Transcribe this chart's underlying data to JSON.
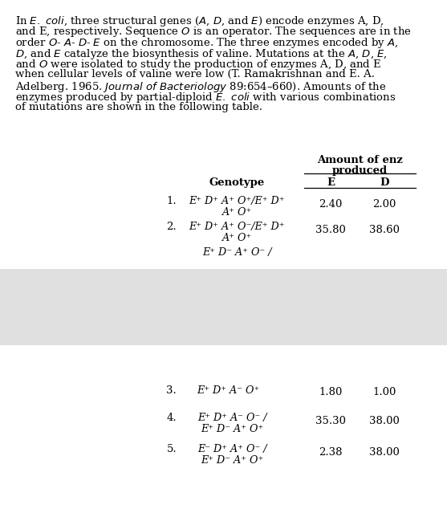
{
  "col_header_line1": "Amount of enz",
  "col_header_line2": "produced",
  "col_genotype": "Genotype",
  "col_E": "E",
  "col_D": "D",
  "rows": [
    {
      "num": "1.",
      "genotype_lines": [
        "E⁺ D⁺ A⁺ O⁺/E⁺ D⁺",
        "A⁺ O⁺"
      ],
      "E_val": "2.40",
      "D_val": "2.00"
    },
    {
      "num": "2.",
      "genotype_lines": [
        "E⁺ D⁺ A⁺ O⁻/E⁺ D⁺",
        "A⁺ O⁺"
      ],
      "E_val": "35.80",
      "D_val": "38.60"
    },
    {
      "num": "",
      "genotype_lines": [
        "E⁺ D⁻ A⁺ O⁻ /"
      ],
      "E_val": "",
      "D_val": ""
    },
    {
      "num": "3.",
      "genotype_lines": [
        "E⁺ D⁺ A⁻ O⁺"
      ],
      "E_val": "1.80",
      "D_val": "1.00"
    },
    {
      "num": "4.",
      "genotype_lines": [
        "E⁺ D⁺ A⁻ O⁻ /",
        "E⁺ D⁻ A⁺ O⁺"
      ],
      "E_val": "35.30",
      "D_val": "38.00"
    },
    {
      "num": "5.",
      "genotype_lines": [
        "E⁻ D⁺ A⁺ O⁻ /",
        "E⁺ D⁻ A⁺ O⁺"
      ],
      "E_val": "2.38",
      "D_val": "38.00"
    }
  ],
  "page_bg": "#ffffff",
  "text_color": "#000000",
  "gray_bg": "#e0e0e0"
}
